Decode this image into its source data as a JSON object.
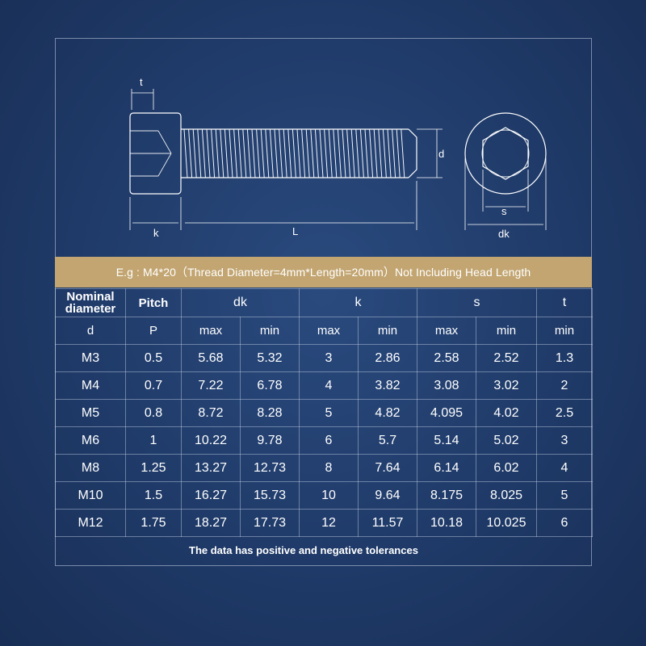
{
  "diagram": {
    "labels": {
      "t": "t",
      "d": "d",
      "k": "k",
      "L": "L",
      "s": "s",
      "dk": "dk"
    }
  },
  "banner": "E.g : M4*20（Thread Diameter=4mm*Length=20mm）Not Including Head Length",
  "table": {
    "headers": {
      "nominal": "Nominal diameter",
      "pitch": "Pitch",
      "dk": "dk",
      "k": "k",
      "s": "s",
      "t": "t"
    },
    "subheaders": [
      "d",
      "P",
      "max",
      "min",
      "max",
      "min",
      "max",
      "min",
      "min"
    ],
    "rows": [
      [
        "M3",
        "0.5",
        "5.68",
        "5.32",
        "3",
        "2.86",
        "2.58",
        "2.52",
        "1.3"
      ],
      [
        "M4",
        "0.7",
        "7.22",
        "6.78",
        "4",
        "3.82",
        "3.08",
        "3.02",
        "2"
      ],
      [
        "M5",
        "0.8",
        "8.72",
        "8.28",
        "5",
        "4.82",
        "4.095",
        "4.02",
        "2.5"
      ],
      [
        "M6",
        "1",
        "10.22",
        "9.78",
        "6",
        "5.7",
        "5.14",
        "5.02",
        "3"
      ],
      [
        "M8",
        "1.25",
        "13.27",
        "12.73",
        "8",
        "7.64",
        "6.14",
        "6.02",
        "4"
      ],
      [
        "M10",
        "1.5",
        "16.27",
        "15.73",
        "10",
        "9.64",
        "8.175",
        "8.025",
        "5"
      ],
      [
        "M12",
        "1.75",
        "18.27",
        "17.73",
        "12",
        "11.57",
        "10.18",
        "10.025",
        "6"
      ]
    ]
  },
  "footer": "The data has positive and negative tolerances"
}
